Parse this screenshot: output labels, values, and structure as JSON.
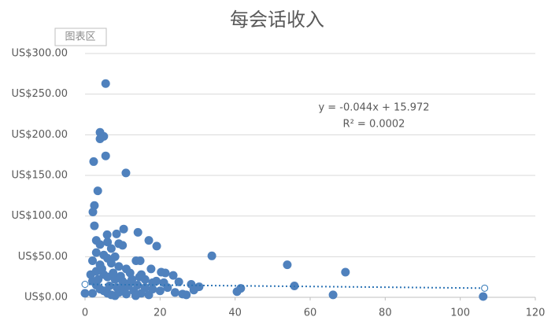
{
  "chart_data": {
    "type": "scatter",
    "title": "每会话收入",
    "chart_area_label": "图表区",
    "color": "#4f81bd",
    "x": [
      5.5,
      4.0,
      5.0,
      4.0,
      5.5,
      2.3,
      10.9,
      3.4,
      2.5,
      2.1,
      2.5,
      10.3,
      8.4,
      5.9,
      14.1,
      17.0,
      19.1,
      33.8,
      53.9,
      69.4,
      55.8,
      66.1,
      106.1,
      40.5,
      41.5,
      13.6,
      14.7,
      17.6,
      20.3,
      21.4,
      23.5,
      25.0,
      28.3,
      30.4,
      27.0,
      0.0,
      3,
      4,
      6,
      7,
      9,
      10,
      3,
      5,
      6,
      8,
      2,
      4,
      7,
      9,
      11,
      12,
      3,
      5,
      6,
      8,
      10,
      12,
      14,
      16,
      2,
      3,
      4,
      5,
      6,
      7,
      8,
      9,
      10,
      11,
      13,
      15,
      17,
      18,
      19,
      20,
      22,
      24,
      26,
      29,
      2,
      1.5,
      3.5,
      6.5,
      7.5,
      9.5,
      12.5,
      14.5,
      16,
      18,
      21,
      4.5,
      8.5,
      11.5,
      13.5,
      15
    ],
    "values": [
      263,
      203,
      198,
      195,
      174,
      167,
      153,
      131,
      113,
      105,
      88,
      84,
      78,
      77,
      80,
      70,
      63,
      51,
      40,
      31,
      14,
      3,
      1,
      7,
      11,
      45,
      45,
      35,
      31,
      30,
      27,
      19,
      16,
      13,
      3,
      5,
      70,
      65,
      68,
      60,
      66,
      64,
      55,
      52,
      48,
      50,
      45,
      40,
      42,
      38,
      35,
      30,
      32,
      28,
      25,
      22,
      20,
      18,
      15,
      12,
      20,
      15,
      10,
      8,
      5,
      3,
      2,
      6,
      10,
      4,
      8,
      5,
      3,
      10,
      20,
      8,
      12,
      6,
      4,
      9,
      5,
      28,
      22,
      14,
      30,
      26,
      22,
      25,
      22,
      18,
      18,
      35,
      12,
      14,
      2,
      28
    ],
    "xlim": [
      0,
      120
    ],
    "xticks": [
      0,
      20,
      40,
      60,
      80,
      100,
      120
    ],
    "ylim": [
      0,
      300
    ],
    "yticks": [
      {
        "value": 0,
        "label": "US$0.00"
      },
      {
        "value": 50,
        "label": "US$50.00"
      },
      {
        "value": 100,
        "label": "US$100.00"
      },
      {
        "value": 150,
        "label": "US$150.00"
      },
      {
        "value": 200,
        "label": "US$200.00"
      },
      {
        "value": 250,
        "label": "US$250.00"
      },
      {
        "value": 300,
        "label": "US$300.00"
      }
    ],
    "grid": true,
    "trendline": {
      "slope": -0.044,
      "intercept": 15.972,
      "x_range": [
        0,
        106.5
      ],
      "color": "#2e75b6",
      "equation": "y = -0.044x + 15.972",
      "r2_label": "R² = 0.0002"
    }
  }
}
